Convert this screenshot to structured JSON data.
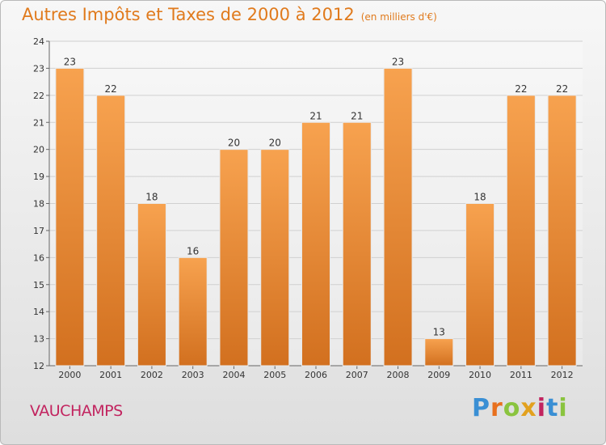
{
  "header": {
    "title": "Autres Impôts et Taxes de 2000 à 2012",
    "unit": "(en milliers d'€)"
  },
  "footer": {
    "commune": "VAUCHAMPS",
    "logo": "Proxiti",
    "logo_colors": [
      "#3a8fd4",
      "#e8701e",
      "#8ac43f",
      "#e2a11e",
      "#c2245f",
      "#3a8fd4",
      "#8ac43f"
    ]
  },
  "colors": {
    "bar_light": "#f7a24f",
    "bar_dark": "#d2701f",
    "title": "#e07a1c",
    "commune": "#c2245f",
    "grid": "#d0d0d0"
  },
  "chart_data": {
    "type": "bar",
    "categories": [
      "2000",
      "2001",
      "2002",
      "2003",
      "2004",
      "2005",
      "2006",
      "2007",
      "2008",
      "2009",
      "2010",
      "2011",
      "2012"
    ],
    "values": [
      23,
      22,
      18,
      16,
      20,
      20,
      21,
      21,
      23,
      13,
      18,
      22,
      22
    ],
    "ylim": [
      12,
      24
    ],
    "yticks": [
      12,
      13,
      14,
      15,
      16,
      17,
      18,
      19,
      20,
      21,
      22,
      23,
      24
    ],
    "grid": true,
    "data_labels": true
  }
}
